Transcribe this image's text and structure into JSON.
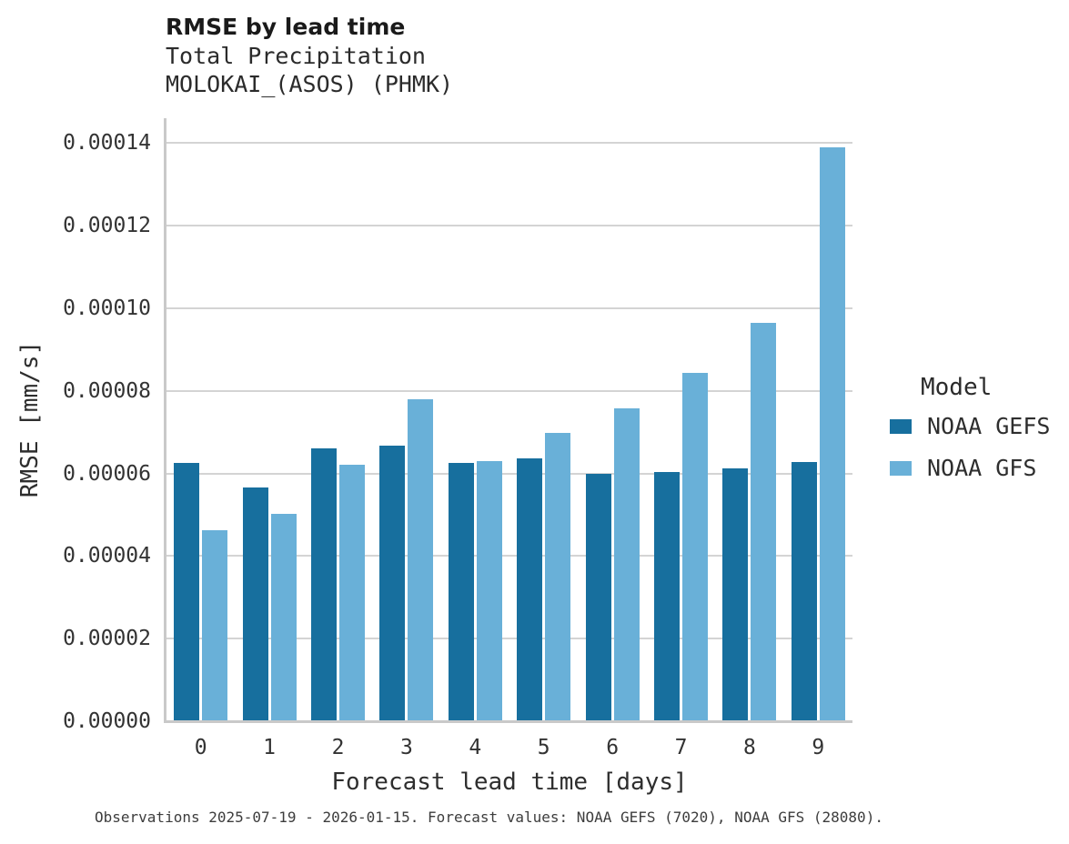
{
  "chart_data": {
    "type": "bar",
    "title": "RMSE by lead time",
    "subtitle": [
      "Total Precipitation",
      "MOLOKAI_(ASOS) (PHMK)"
    ],
    "xlabel": "Forecast lead time [days]",
    "ylabel": "RMSE [mm/s]",
    "categories": [
      "0",
      "1",
      "2",
      "3",
      "4",
      "5",
      "6",
      "7",
      "8",
      "9"
    ],
    "series": [
      {
        "name": "NOAA GEFS",
        "color": "#176f9e",
        "values": [
          6.25e-05,
          5.67e-05,
          6.6e-05,
          6.67e-05,
          6.25e-05,
          6.37e-05,
          5.98e-05,
          6.04e-05,
          6.12e-05,
          6.28e-05
        ]
      },
      {
        "name": "NOAA GFS",
        "color": "#69b0d8",
        "values": [
          4.63e-05,
          5.02e-05,
          6.2e-05,
          7.8e-05,
          6.3e-05,
          6.99e-05,
          7.57e-05,
          8.43e-05,
          9.64e-05,
          0.000139
        ]
      }
    ],
    "ylim": [
      0,
      0.000146
    ],
    "yticks": [
      0,
      2e-05,
      4e-05,
      6e-05,
      8e-05,
      0.0001,
      0.00012,
      0.00014
    ],
    "ytick_labels": [
      "0.00000",
      "0.00002",
      "0.00004",
      "0.00006",
      "0.00008",
      "0.00010",
      "0.00012",
      "0.00014"
    ],
    "grid": "horizontal",
    "legend_title": "Model",
    "legend_position": "right"
  },
  "footer": {
    "caption": "Observations 2025-07-19 - 2026-01-15. Forecast values: NOAA GEFS (7020), NOAA GFS (28080)."
  }
}
